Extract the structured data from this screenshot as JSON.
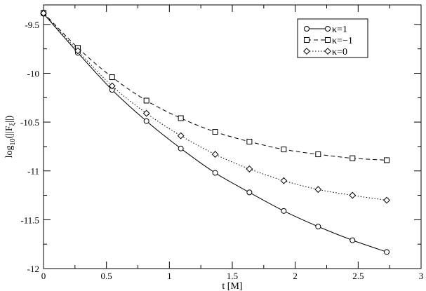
{
  "chart_data": {
    "type": "line",
    "xlabel": "t [M]",
    "ylabel": "log",
    "ylabel_sub": "10",
    "ylabel_rest": "(||F",
    "ylabel_sub2": "ξ",
    "ylabel_end": "||)",
    "xlim": [
      0,
      3
    ],
    "ylim": [
      -12,
      -9.3
    ],
    "xticks": [
      0,
      0.5,
      1,
      1.5,
      2,
      2.5,
      3
    ],
    "xtick_labels": [
      "0",
      "0.5",
      "1",
      "1.5",
      "2",
      "2.5",
      "3"
    ],
    "yticks": [
      -12,
      -11.5,
      -11,
      -10.5,
      -10,
      -9.5
    ],
    "ytick_labels": [
      "-12",
      "-11.5",
      "-11",
      "-10.5",
      "-10",
      "-9.5"
    ],
    "grid": false,
    "legend_position": "top-right",
    "x": [
      0.0,
      0.273,
      0.545,
      0.818,
      1.091,
      1.364,
      1.636,
      1.909,
      2.182,
      2.455,
      2.727
    ],
    "series": [
      {
        "name": "κ=1",
        "marker": "circle",
        "dash": "solid",
        "values": [
          -9.39,
          -9.79,
          -10.17,
          -10.49,
          -10.77,
          -11.02,
          -11.22,
          -11.41,
          -11.57,
          -11.71,
          -11.83
        ]
      },
      {
        "name": "κ=−1",
        "marker": "square",
        "dash": "dashed",
        "values": [
          -9.38,
          -9.74,
          -10.04,
          -10.28,
          -10.46,
          -10.6,
          -10.7,
          -10.78,
          -10.83,
          -10.87,
          -10.89
        ]
      },
      {
        "name": "κ=0",
        "marker": "diamond",
        "dash": "dotted",
        "values": [
          -9.385,
          -9.77,
          -10.13,
          -10.41,
          -10.64,
          -10.83,
          -10.98,
          -11.1,
          -11.19,
          -11.25,
          -11.3
        ]
      }
    ]
  }
}
